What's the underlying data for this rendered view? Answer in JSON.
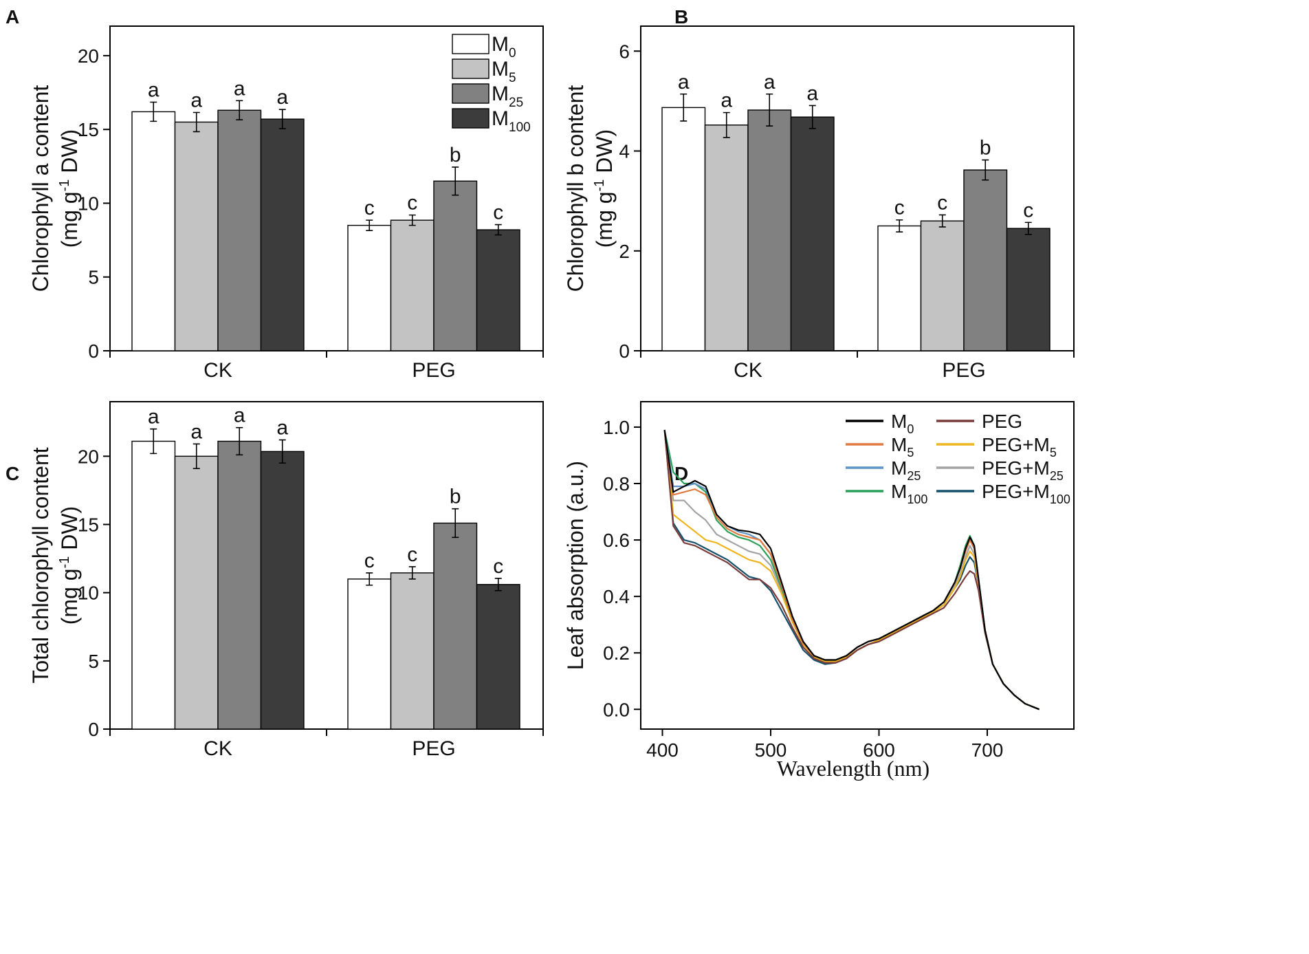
{
  "colors": {
    "M0": "#ffffff",
    "M5": "#c3c3c3",
    "M25": "#818181",
    "M100": "#3c3c3c",
    "line_M0": "#000000",
    "line_M5": "#e07a3e",
    "line_M25": "#5f93c8",
    "line_M100": "#2aa05a",
    "line_PEG": "#7a3b3b",
    "line_PEG_M5": "#f0b41e",
    "line_PEG_M25": "#a3a3a3",
    "line_PEG_M100": "#15506b"
  },
  "panels": {
    "A": {
      "letter": "A"
    },
    "B": {
      "letter": "B"
    },
    "C": {
      "letter": "C"
    },
    "D": {
      "letter": "D"
    }
  },
  "chart_data": [
    {
      "id": "A",
      "type": "bar",
      "ylabel_line1": "Chlorophyll a content",
      "ylabel_line2": "(mg g",
      "ylabel_sup": "-1",
      "ylabel_tail": " DW)",
      "categories": [
        "CK",
        "PEG"
      ],
      "ylim": [
        0,
        22
      ],
      "yticks": [
        0,
        5,
        10,
        15,
        20
      ],
      "ytick_labels": [
        "0",
        "5",
        "10",
        "15",
        "20"
      ],
      "legend": [
        {
          "base": "M",
          "sub": "0"
        },
        {
          "base": "M",
          "sub": "5"
        },
        {
          "base": "M",
          "sub": "25"
        },
        {
          "base": "M",
          "sub": "100"
        }
      ],
      "series": [
        {
          "name": "M0",
          "values": [
            16.2,
            8.5
          ],
          "errors": [
            0.65,
            0.35
          ],
          "letters": [
            "a",
            "c"
          ]
        },
        {
          "name": "M5",
          "values": [
            15.5,
            8.85
          ],
          "errors": [
            0.65,
            0.35
          ],
          "letters": [
            "a",
            "c"
          ]
        },
        {
          "name": "M25",
          "values": [
            16.3,
            11.5
          ],
          "errors": [
            0.65,
            0.95
          ],
          "letters": [
            "a",
            "b"
          ]
        },
        {
          "name": "M100",
          "values": [
            15.7,
            8.2
          ],
          "errors": [
            0.65,
            0.35
          ],
          "letters": [
            "a",
            "c"
          ]
        }
      ]
    },
    {
      "id": "B",
      "type": "bar",
      "ylabel_line1": "Chlorophyll b content",
      "ylabel_line2": "(mg g",
      "ylabel_sup": "-1",
      "ylabel_tail": " DW)",
      "categories": [
        "CK",
        "PEG"
      ],
      "ylim": [
        0,
        6.5
      ],
      "yticks": [
        0,
        2,
        4,
        6
      ],
      "ytick_labels": [
        "0",
        "2",
        "4",
        "6"
      ],
      "series": [
        {
          "name": "M0",
          "values": [
            4.87,
            2.5
          ],
          "errors": [
            0.27,
            0.12
          ],
          "letters": [
            "a",
            "c"
          ]
        },
        {
          "name": "M5",
          "values": [
            4.52,
            2.6
          ],
          "errors": [
            0.25,
            0.12
          ],
          "letters": [
            "a",
            "c"
          ]
        },
        {
          "name": "M25",
          "values": [
            4.82,
            3.62
          ],
          "errors": [
            0.32,
            0.2
          ],
          "letters": [
            "a",
            "b"
          ]
        },
        {
          "name": "M100",
          "values": [
            4.68,
            2.45
          ],
          "errors": [
            0.23,
            0.12
          ],
          "letters": [
            "a",
            "c"
          ]
        }
      ]
    },
    {
      "id": "C",
      "type": "bar",
      "ylabel_line1": "Total chlorophyll content",
      "ylabel_line2": "(mg g",
      "ylabel_sup": "-1",
      "ylabel_tail": " DW)",
      "categories": [
        "CK",
        "PEG"
      ],
      "ylim": [
        0,
        24
      ],
      "yticks": [
        0,
        5,
        10,
        15,
        20
      ],
      "ytick_labels": [
        "0",
        "5",
        "10",
        "15",
        "20"
      ],
      "series": [
        {
          "name": "M0",
          "values": [
            21.1,
            11.0
          ],
          "errors": [
            0.9,
            0.45
          ],
          "letters": [
            "a",
            "c"
          ]
        },
        {
          "name": "M5",
          "values": [
            20.0,
            11.45
          ],
          "errors": [
            0.9,
            0.45
          ],
          "letters": [
            "a",
            "c"
          ]
        },
        {
          "name": "M25",
          "values": [
            21.1,
            15.1
          ],
          "errors": [
            1.0,
            1.05
          ],
          "letters": [
            "a",
            "b"
          ]
        },
        {
          "name": "M100",
          "values": [
            20.35,
            10.6
          ],
          "errors": [
            0.85,
            0.45
          ],
          "letters": [
            "a",
            "c"
          ]
        }
      ]
    },
    {
      "id": "D",
      "type": "line",
      "xlabel": "Wavelength (nm)",
      "ylabel": "Leaf absorption (a.u.)",
      "xlim": [
        380,
        780
      ],
      "ylim": [
        -0.07,
        1.09
      ],
      "xticks": [
        400,
        500,
        600,
        700
      ],
      "xtick_labels": [
        "400",
        "500",
        "600",
        "700"
      ],
      "yticks": [
        0.0,
        0.2,
        0.4,
        0.6,
        0.8,
        1.0
      ],
      "ytick_labels": [
        "0.0",
        "0.2",
        "0.4",
        "0.6",
        "0.8",
        "1.0"
      ],
      "x": [
        402,
        410,
        420,
        430,
        440,
        450,
        460,
        470,
        480,
        490,
        500,
        510,
        520,
        530,
        540,
        550,
        560,
        570,
        580,
        590,
        600,
        610,
        620,
        630,
        640,
        650,
        660,
        670,
        675,
        680,
        684,
        688,
        692,
        698,
        705,
        715,
        725,
        735,
        748
      ],
      "legend_order": [
        "M0",
        "M5",
        "M25",
        "M100",
        "PEG",
        "PEG_M5",
        "PEG_M25",
        "PEG_M100"
      ],
      "series": [
        {
          "key": "M0",
          "label": "M",
          "sub": "0",
          "values": [
            0.99,
            0.77,
            0.79,
            0.81,
            0.79,
            0.69,
            0.65,
            0.635,
            0.63,
            0.62,
            0.57,
            0.45,
            0.33,
            0.24,
            0.19,
            0.175,
            0.175,
            0.19,
            0.22,
            0.24,
            0.25,
            0.27,
            0.29,
            0.31,
            0.33,
            0.35,
            0.38,
            0.45,
            0.5,
            0.57,
            0.61,
            0.58,
            0.46,
            0.28,
            0.16,
            0.09,
            0.05,
            0.02,
            0.0
          ]
        },
        {
          "key": "M5",
          "label": "M",
          "sub": "5",
          "values": [
            0.99,
            0.76,
            0.77,
            0.78,
            0.76,
            0.68,
            0.64,
            0.62,
            0.61,
            0.6,
            0.55,
            0.44,
            0.32,
            0.235,
            0.19,
            0.175,
            0.175,
            0.19,
            0.22,
            0.24,
            0.25,
            0.27,
            0.29,
            0.31,
            0.33,
            0.35,
            0.38,
            0.45,
            0.5,
            0.56,
            0.6,
            0.57,
            0.45,
            0.28,
            0.16,
            0.09,
            0.05,
            0.02,
            0.0
          ]
        },
        {
          "key": "M25",
          "label": "M",
          "sub": "25",
          "values": [
            0.99,
            0.79,
            0.79,
            0.8,
            0.78,
            0.69,
            0.65,
            0.63,
            0.62,
            0.6,
            0.55,
            0.44,
            0.32,
            0.235,
            0.19,
            0.175,
            0.175,
            0.19,
            0.22,
            0.24,
            0.25,
            0.27,
            0.29,
            0.31,
            0.33,
            0.35,
            0.38,
            0.45,
            0.5,
            0.57,
            0.6,
            0.57,
            0.45,
            0.28,
            0.16,
            0.09,
            0.05,
            0.02,
            0.0
          ]
        },
        {
          "key": "M100",
          "label": "M",
          "sub": "100",
          "values": [
            0.99,
            0.84,
            0.8,
            0.8,
            0.77,
            0.67,
            0.63,
            0.61,
            0.6,
            0.58,
            0.53,
            0.43,
            0.32,
            0.235,
            0.19,
            0.175,
            0.175,
            0.19,
            0.22,
            0.24,
            0.25,
            0.27,
            0.29,
            0.31,
            0.33,
            0.35,
            0.38,
            0.45,
            0.51,
            0.58,
            0.615,
            0.58,
            0.46,
            0.28,
            0.16,
            0.09,
            0.05,
            0.02,
            0.0
          ]
        },
        {
          "key": "PEG",
          "label": "PEG",
          "sub": "",
          "values": [
            0.99,
            0.65,
            0.59,
            0.58,
            0.56,
            0.54,
            0.52,
            0.49,
            0.46,
            0.46,
            0.43,
            0.37,
            0.29,
            0.22,
            0.18,
            0.165,
            0.165,
            0.18,
            0.21,
            0.23,
            0.24,
            0.26,
            0.28,
            0.3,
            0.32,
            0.34,
            0.36,
            0.41,
            0.44,
            0.47,
            0.49,
            0.48,
            0.42,
            0.27,
            0.16,
            0.09,
            0.05,
            0.02,
            0.0
          ]
        },
        {
          "key": "PEG_M5",
          "label": "PEG+M",
          "sub": "5",
          "values": [
            0.99,
            0.69,
            0.66,
            0.63,
            0.6,
            0.59,
            0.57,
            0.55,
            0.53,
            0.52,
            0.49,
            0.41,
            0.31,
            0.23,
            0.185,
            0.17,
            0.17,
            0.185,
            0.21,
            0.23,
            0.245,
            0.265,
            0.285,
            0.305,
            0.325,
            0.345,
            0.37,
            0.43,
            0.47,
            0.53,
            0.56,
            0.54,
            0.44,
            0.28,
            0.16,
            0.09,
            0.05,
            0.02,
            0.0
          ]
        },
        {
          "key": "PEG_M25",
          "label": "PEG+M",
          "sub": "25",
          "values": [
            0.99,
            0.74,
            0.74,
            0.7,
            0.67,
            0.62,
            0.6,
            0.58,
            0.56,
            0.55,
            0.51,
            0.42,
            0.31,
            0.23,
            0.185,
            0.17,
            0.17,
            0.185,
            0.21,
            0.23,
            0.245,
            0.265,
            0.285,
            0.305,
            0.325,
            0.345,
            0.37,
            0.44,
            0.48,
            0.54,
            0.58,
            0.55,
            0.45,
            0.28,
            0.16,
            0.09,
            0.05,
            0.02,
            0.0
          ]
        },
        {
          "key": "PEG_M100",
          "label": "PEG+M",
          "sub": "100",
          "values": [
            0.99,
            0.66,
            0.6,
            0.59,
            0.57,
            0.55,
            0.53,
            0.5,
            0.47,
            0.46,
            0.42,
            0.35,
            0.28,
            0.21,
            0.175,
            0.16,
            0.165,
            0.18,
            0.21,
            0.23,
            0.245,
            0.265,
            0.285,
            0.305,
            0.325,
            0.345,
            0.37,
            0.43,
            0.46,
            0.51,
            0.54,
            0.52,
            0.44,
            0.28,
            0.16,
            0.09,
            0.05,
            0.02,
            0.0
          ]
        }
      ]
    }
  ]
}
